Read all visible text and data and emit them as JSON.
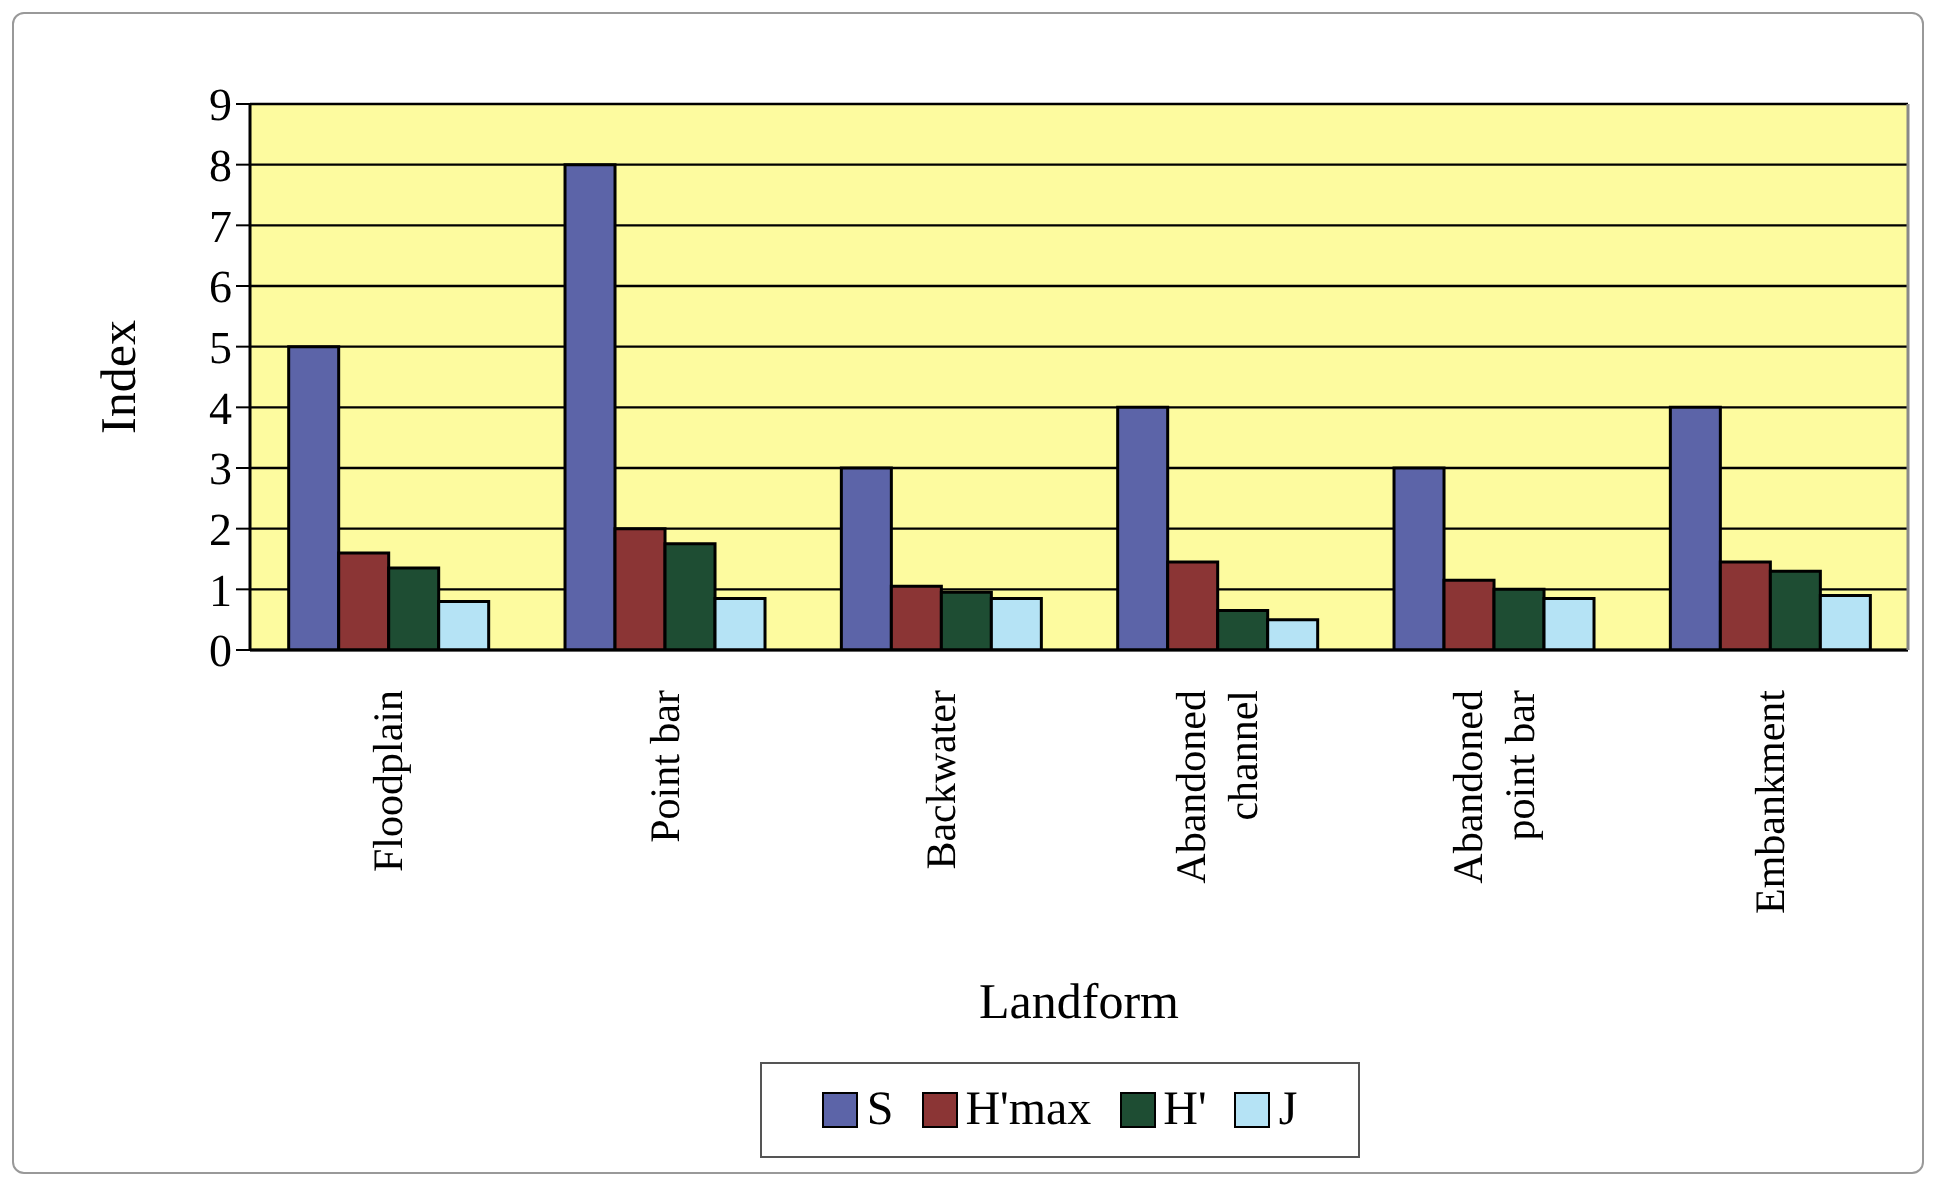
{
  "chart_data": {
    "type": "bar",
    "xlabel": "Landform",
    "ylabel": "Index",
    "categories": [
      "Floodplain",
      "Point bar",
      "Backwater",
      "Abandoned channel",
      "Abandoned point bar",
      "Embankment"
    ],
    "series": [
      {
        "name": "S",
        "color": "#5c64a8",
        "values": [
          5,
          8,
          3,
          4,
          3,
          4
        ]
      },
      {
        "name": "H'max",
        "color": "#8b3535",
        "values": [
          1.6,
          2,
          1.05,
          1.45,
          1.15,
          1.45
        ]
      },
      {
        "name": "H'",
        "color": "#1e4d33",
        "values": [
          1.35,
          1.75,
          0.95,
          0.65,
          1,
          1.3
        ]
      },
      {
        "name": "J",
        "color": "#b5e3f5",
        "values": [
          0.8,
          0.85,
          0.85,
          0.5,
          0.85,
          0.9
        ]
      }
    ],
    "ylim": [
      0,
      9
    ],
    "yticks": [
      0,
      1,
      2,
      3,
      4,
      5,
      6,
      7,
      8,
      9
    ],
    "grid": "y",
    "legend": "bottom"
  }
}
